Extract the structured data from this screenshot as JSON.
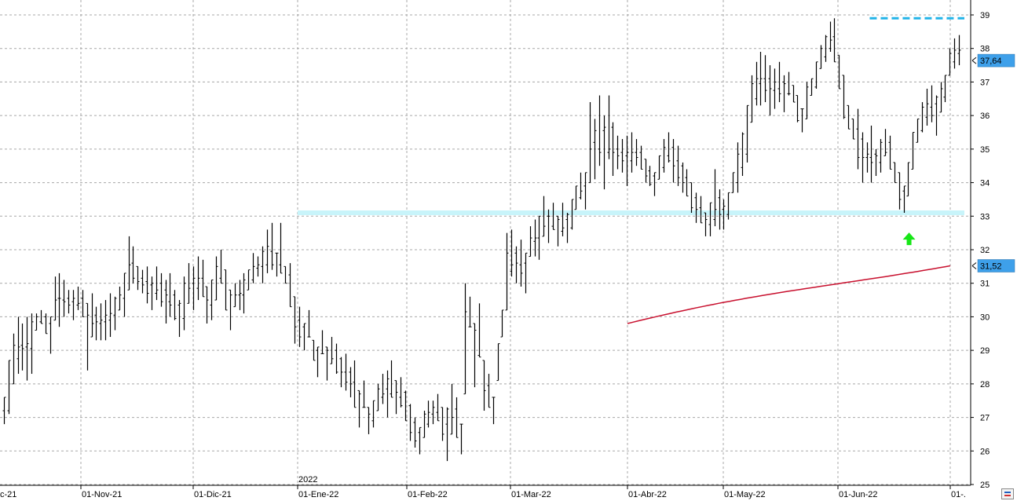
{
  "chart_data": {
    "type": "ohlc",
    "title": "",
    "xlabel": "",
    "ylabel": "",
    "ylim": [
      25,
      39
    ],
    "y_ticks": [
      25,
      26,
      27,
      28,
      29,
      30,
      31,
      32,
      33,
      34,
      35,
      36,
      37,
      38,
      39
    ],
    "x_date_ticks": [
      "c-21",
      "01-Nov-21",
      "01-Dic-21",
      "01-Ene-22",
      "01-Feb-22",
      "01-Mar-22",
      "01-Abr-22",
      "01-May-22",
      "01-Jun-22",
      "01-."
    ],
    "year_marker": "2022",
    "grid": true,
    "last_price": "37,64",
    "ma_price": "31,52",
    "support_level": 33.1,
    "resistance_level": 38.9,
    "ma_start": {
      "date": "2022-04-01",
      "value": 29.8
    },
    "ma_end": {
      "date": "2022-07-01",
      "value": 31.52
    },
    "signal_arrow": {
      "date": "2022-06-20",
      "value": 32.3,
      "direction": "up"
    },
    "colors": {
      "bars": "#000000",
      "support_band": "#c8f4fa",
      "resistance_line": "#22b4e8",
      "moving_average": "#c8102e",
      "signal_arrow": "#17e617",
      "price_tag": "#3ea0ea",
      "grid": "#a8a8a8"
    },
    "series": [
      {
        "type": "ohlc-bars",
        "bars": [
          [
            26.8,
            27.6
          ],
          [
            27.1,
            28.7
          ],
          [
            28.0,
            29.5
          ],
          [
            28.3,
            30.0
          ],
          [
            28.4,
            29.8
          ],
          [
            28.1,
            30.0
          ],
          [
            28.3,
            30.1
          ],
          [
            29.6,
            30.1
          ],
          [
            29.8,
            30.2
          ],
          [
            29.5,
            30.1
          ],
          [
            28.9,
            30.0
          ],
          [
            29.9,
            31.2
          ],
          [
            29.7,
            31.3
          ],
          [
            30.0,
            31.1
          ],
          [
            30.1,
            30.8
          ],
          [
            29.9,
            30.8
          ],
          [
            30.2,
            30.9
          ],
          [
            30.0,
            30.8
          ],
          [
            28.4,
            30.4
          ],
          [
            29.4,
            30.7
          ],
          [
            29.3,
            30.3
          ],
          [
            29.3,
            30.4
          ],
          [
            29.3,
            30.5
          ],
          [
            29.4,
            30.7
          ],
          [
            29.6,
            30.6
          ],
          [
            30.2,
            30.9
          ],
          [
            30.0,
            31.3
          ],
          [
            30.8,
            32.4
          ],
          [
            31.0,
            32.1
          ],
          [
            30.8,
            31.5
          ],
          [
            30.7,
            31.4
          ],
          [
            30.4,
            31.5
          ],
          [
            30.2,
            31.2
          ],
          [
            30.5,
            31.5
          ],
          [
            30.3,
            31.3
          ],
          [
            29.8,
            31.1
          ],
          [
            30.0,
            31.3
          ],
          [
            29.9,
            30.8
          ],
          [
            29.4,
            30.5
          ],
          [
            29.6,
            31.2
          ],
          [
            30.4,
            31.6
          ],
          [
            30.2,
            31.5
          ],
          [
            30.5,
            31.8
          ],
          [
            30.6,
            31.7
          ],
          [
            29.8,
            30.9
          ],
          [
            29.9,
            31.1
          ],
          [
            30.5,
            31.8
          ],
          [
            31.0,
            32.0
          ],
          [
            30.2,
            31.4
          ],
          [
            29.6,
            30.8
          ],
          [
            30.3,
            31.0
          ],
          [
            30.2,
            31.1
          ],
          [
            30.1,
            31.3
          ],
          [
            30.8,
            31.4
          ],
          [
            31.0,
            31.9
          ],
          [
            31.2,
            31.8
          ],
          [
            31.0,
            32.1
          ],
          [
            31.3,
            32.6
          ],
          [
            31.4,
            32.8
          ],
          [
            31.2,
            31.9
          ],
          [
            31.3,
            32.8
          ],
          [
            31.0,
            31.5
          ],
          [
            30.3,
            31.6
          ],
          [
            29.2,
            30.6
          ],
          [
            29.1,
            30.3
          ],
          [
            29.0,
            29.8
          ],
          [
            29.4,
            30.2
          ],
          [
            28.7,
            29.3
          ],
          [
            28.2,
            29.1
          ],
          [
            28.9,
            29.6
          ],
          [
            28.1,
            29.1
          ],
          [
            28.6,
            29.4
          ],
          [
            28.3,
            29.2
          ],
          [
            27.9,
            28.8
          ],
          [
            27.8,
            28.9
          ],
          [
            27.6,
            28.5
          ],
          [
            27.3,
            28.7
          ],
          [
            26.7,
            27.8
          ],
          [
            27.3,
            28.1
          ],
          [
            26.5,
            27.3
          ],
          [
            26.7,
            27.5
          ],
          [
            27.2,
            28.0
          ],
          [
            27.4,
            28.3
          ],
          [
            27.0,
            28.4
          ],
          [
            27.6,
            28.7
          ],
          [
            27.1,
            28.1
          ],
          [
            27.3,
            28.2
          ],
          [
            26.9,
            27.8
          ],
          [
            26.3,
            27.4
          ],
          [
            26.1,
            27.0
          ],
          [
            25.9,
            26.7
          ],
          [
            26.4,
            27.2
          ],
          [
            26.7,
            27.5
          ],
          [
            26.8,
            27.5
          ],
          [
            26.9,
            27.7
          ],
          [
            26.3,
            27.3
          ],
          [
            25.7,
            27.3
          ],
          [
            26.5,
            28.0
          ],
          [
            26.4,
            27.6
          ],
          [
            25.9,
            26.8
          ],
          [
            27.7,
            31.0
          ],
          [
            29.7,
            30.6
          ],
          [
            27.9,
            29.8
          ],
          [
            28.8,
            30.4
          ],
          [
            27.2,
            28.7
          ],
          [
            27.3,
            28.3
          ],
          [
            26.8,
            27.6
          ],
          [
            28.1,
            29.2
          ],
          [
            29.4,
            30.2
          ],
          [
            30.2,
            32.5
          ],
          [
            31.2,
            32.6
          ],
          [
            31.0,
            32.1
          ],
          [
            30.9,
            32.3
          ],
          [
            30.7,
            31.9
          ],
          [
            31.8,
            32.7
          ],
          [
            31.8,
            32.9
          ],
          [
            31.7,
            33.0
          ],
          [
            32.4,
            33.6
          ],
          [
            32.2,
            33.2
          ],
          [
            32.6,
            33.4
          ],
          [
            32.1,
            33.0
          ],
          [
            32.4,
            33.4
          ],
          [
            32.2,
            33.1
          ],
          [
            32.6,
            33.5
          ],
          [
            33.2,
            33.9
          ],
          [
            33.5,
            34.3
          ],
          [
            33.2,
            34.3
          ],
          [
            34.0,
            36.4
          ],
          [
            34.1,
            35.9
          ],
          [
            34.5,
            36.6
          ],
          [
            33.8,
            36.0
          ],
          [
            34.7,
            36.6
          ],
          [
            34.2,
            35.8
          ],
          [
            34.4,
            35.4
          ],
          [
            34.3,
            35.3
          ],
          [
            33.9,
            35.4
          ],
          [
            34.3,
            35.5
          ],
          [
            34.5,
            35.3
          ],
          [
            34.4,
            35.1
          ],
          [
            34.0,
            34.7
          ],
          [
            33.9,
            34.5
          ],
          [
            33.6,
            34.3
          ],
          [
            34.1,
            34.8
          ],
          [
            34.3,
            35.3
          ],
          [
            34.6,
            35.5
          ],
          [
            34.0,
            35.3
          ],
          [
            33.9,
            35.1
          ],
          [
            33.7,
            34.6
          ],
          [
            33.6,
            34.4
          ],
          [
            33.1,
            34.0
          ],
          [
            32.8,
            33.7
          ],
          [
            32.8,
            33.6
          ],
          [
            32.4,
            33.1
          ],
          [
            32.4,
            33.4
          ],
          [
            32.7,
            34.4
          ],
          [
            32.6,
            33.8
          ],
          [
            32.6,
            33.5
          ],
          [
            32.9,
            33.7
          ],
          [
            33.7,
            34.3
          ],
          [
            33.7,
            35.2
          ],
          [
            34.2,
            35.5
          ],
          [
            34.6,
            36.3
          ],
          [
            35.8,
            37.2
          ],
          [
            36.3,
            37.6
          ],
          [
            36.3,
            37.9
          ],
          [
            36.4,
            37.8
          ],
          [
            36.0,
            37.5
          ],
          [
            36.2,
            37.4
          ],
          [
            36.4,
            37.6
          ],
          [
            36.1,
            37.2
          ],
          [
            36.6,
            37.3
          ],
          [
            36.4,
            36.9
          ],
          [
            35.8,
            36.6
          ],
          [
            35.5,
            36.2
          ],
          [
            35.9,
            37.0
          ],
          [
            36.6,
            37.1
          ],
          [
            36.8,
            37.6
          ],
          [
            37.4,
            38.1
          ],
          [
            37.6,
            38.4
          ],
          [
            37.9,
            38.8
          ],
          [
            37.6,
            38.9
          ],
          [
            36.8,
            37.8
          ],
          [
            35.9,
            37.2
          ],
          [
            35.6,
            36.3
          ],
          [
            35.3,
            35.9
          ],
          [
            34.4,
            36.2
          ],
          [
            34.0,
            35.5
          ],
          [
            34.3,
            35.2
          ],
          [
            34.0,
            35.7
          ],
          [
            34.2,
            35.0
          ],
          [
            34.3,
            35.3
          ],
          [
            34.8,
            35.6
          ],
          [
            34.4,
            35.4
          ],
          [
            34.0,
            34.6
          ],
          [
            33.2,
            34.3
          ],
          [
            33.1,
            33.9
          ],
          [
            33.6,
            34.6
          ],
          [
            34.4,
            35.5
          ],
          [
            35.2,
            35.9
          ],
          [
            35.5,
            36.4
          ],
          [
            35.7,
            36.8
          ],
          [
            35.8,
            36.9
          ],
          [
            35.4,
            36.6
          ],
          [
            36.1,
            37.0
          ],
          [
            36.4,
            37.2
          ],
          [
            37.2,
            38.0
          ],
          [
            37.4,
            38.3
          ],
          [
            37.5,
            38.4
          ]
        ]
      }
    ]
  }
}
